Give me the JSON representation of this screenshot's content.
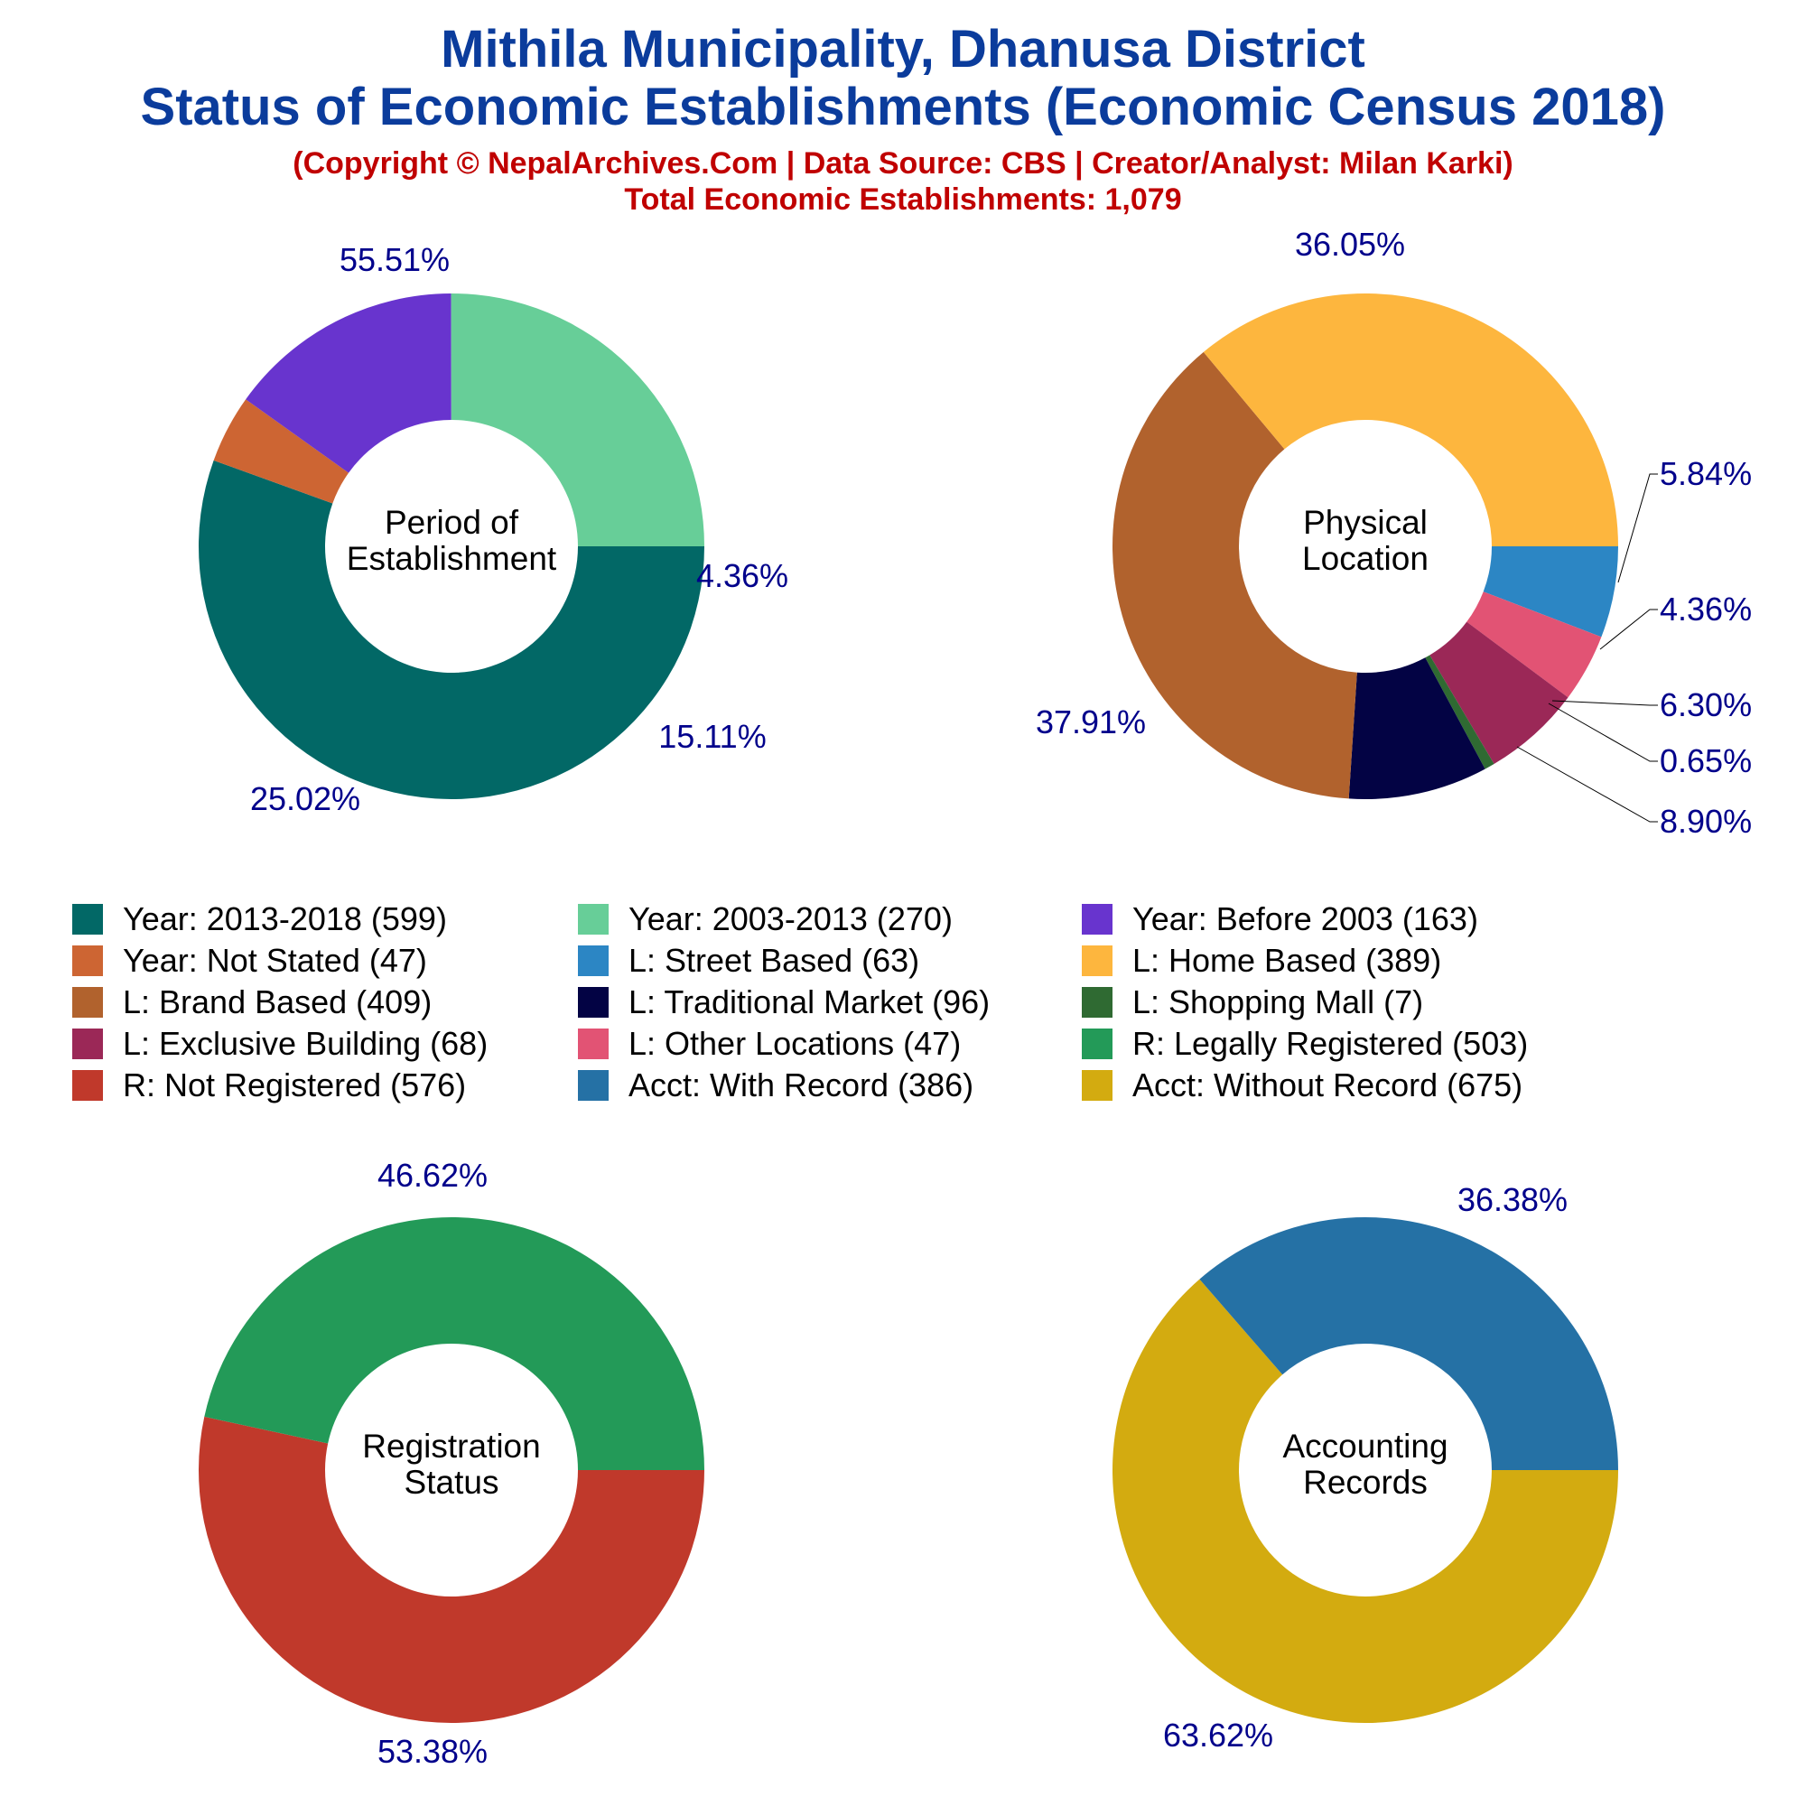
{
  "header": {
    "title_line1": "Mithila Municipality, Dhanusa District",
    "title_line2": "Status of Economic Establishments (Economic Census 2018)",
    "copyright": "(Copyright © NepalArchives.Com | Data Source: CBS | Creator/Analyst: Milan Karki)",
    "total": "Total Economic Establishments: 1,079"
  },
  "colors": {
    "title": "#0b3c9c",
    "subtitle": "#c00000",
    "percent_label": "#00008b"
  },
  "chart_data": [
    {
      "type": "pie",
      "style": "donut",
      "center_label": [
        "Period of",
        "Establishment"
      ],
      "slices": [
        {
          "label": "Year: 2013-2018",
          "count": 599,
          "percent": 55.51,
          "percent_label": "55.51%",
          "color": "#026866"
        },
        {
          "label": "Year: Not Stated",
          "count": 47,
          "percent": 4.36,
          "percent_label": "4.36%",
          "color": "#cd6533"
        },
        {
          "label": "Year: Before 2003",
          "count": 163,
          "percent": 15.11,
          "percent_label": "15.11%",
          "color": "#6834ce"
        },
        {
          "label": "Year: 2003-2013",
          "count": 270,
          "percent": 25.02,
          "percent_label": "25.02%",
          "color": "#67ce98"
        }
      ]
    },
    {
      "type": "pie",
      "style": "donut",
      "center_label": [
        "Physical",
        "Location"
      ],
      "slices": [
        {
          "label": "L: Street Based",
          "count": 63,
          "percent": 5.84,
          "percent_label": "5.84%",
          "color": "#2c86c4"
        },
        {
          "label": "L: Other Locations",
          "count": 47,
          "percent": 4.36,
          "percent_label": "4.36%",
          "color": "#e25374"
        },
        {
          "label": "L: Exclusive Building",
          "count": 68,
          "percent": 6.3,
          "percent_label": "6.30%",
          "color": "#9b2857"
        },
        {
          "label": "L: Shopping Mall",
          "count": 7,
          "percent": 0.65,
          "percent_label": "0.65%",
          "color": "#2f6a32"
        },
        {
          "label": "L: Traditional Market",
          "count": 96,
          "percent": 8.9,
          "percent_label": "8.90%",
          "color": "#030344"
        },
        {
          "label": "L: Brand Based",
          "count": 409,
          "percent": 37.91,
          "percent_label": "37.91%",
          "color": "#b1622d"
        },
        {
          "label": "L: Home Based",
          "count": 389,
          "percent": 36.05,
          "percent_label": "36.05%",
          "color": "#fdb63e"
        }
      ]
    },
    {
      "type": "pie",
      "style": "donut",
      "center_label": [
        "Registration",
        "Status"
      ],
      "slices": [
        {
          "label": "R: Not Registered",
          "count": 576,
          "percent": 53.38,
          "percent_label": "53.38%",
          "color": "#c0392b"
        },
        {
          "label": "R: Legally Registered",
          "count": 503,
          "percent": 46.62,
          "percent_label": "46.62%",
          "color": "#239a58"
        }
      ]
    },
    {
      "type": "pie",
      "style": "donut",
      "center_label": [
        "Accounting",
        "Records"
      ],
      "slices": [
        {
          "label": "Acct: Without Record",
          "count": 675,
          "percent": 63.62,
          "percent_label": "63.62%",
          "color": "#d3ab10"
        },
        {
          "label": "Acct: With Record",
          "count": 386,
          "percent": 36.38,
          "percent_label": "36.38%",
          "color": "#2571a5"
        }
      ]
    }
  ],
  "legend": [
    {
      "label": "Year: 2013-2018 (599)",
      "color": "#026866"
    },
    {
      "label": "Year: 2003-2013 (270)",
      "color": "#67ce98"
    },
    {
      "label": "Year: Before 2003 (163)",
      "color": "#6834ce"
    },
    {
      "label": "Year: Not Stated (47)",
      "color": "#cd6533"
    },
    {
      "label": "L: Street Based (63)",
      "color": "#2c86c4"
    },
    {
      "label": "L: Home Based (389)",
      "color": "#fdb63e"
    },
    {
      "label": "L: Brand Based (409)",
      "color": "#b1622d"
    },
    {
      "label": "L: Traditional Market (96)",
      "color": "#030344"
    },
    {
      "label": "L: Shopping Mall (7)",
      "color": "#2f6a32"
    },
    {
      "label": "L: Exclusive Building (68)",
      "color": "#9b2857"
    },
    {
      "label": "L: Other Locations (47)",
      "color": "#e25374"
    },
    {
      "label": "R: Legally Registered (503)",
      "color": "#239a58"
    },
    {
      "label": "R: Not Registered (576)",
      "color": "#c0392b"
    },
    {
      "label": "Acct: With Record (386)",
      "color": "#2571a5"
    },
    {
      "label": "Acct: Without Record (675)",
      "color": "#d3ab10"
    }
  ]
}
